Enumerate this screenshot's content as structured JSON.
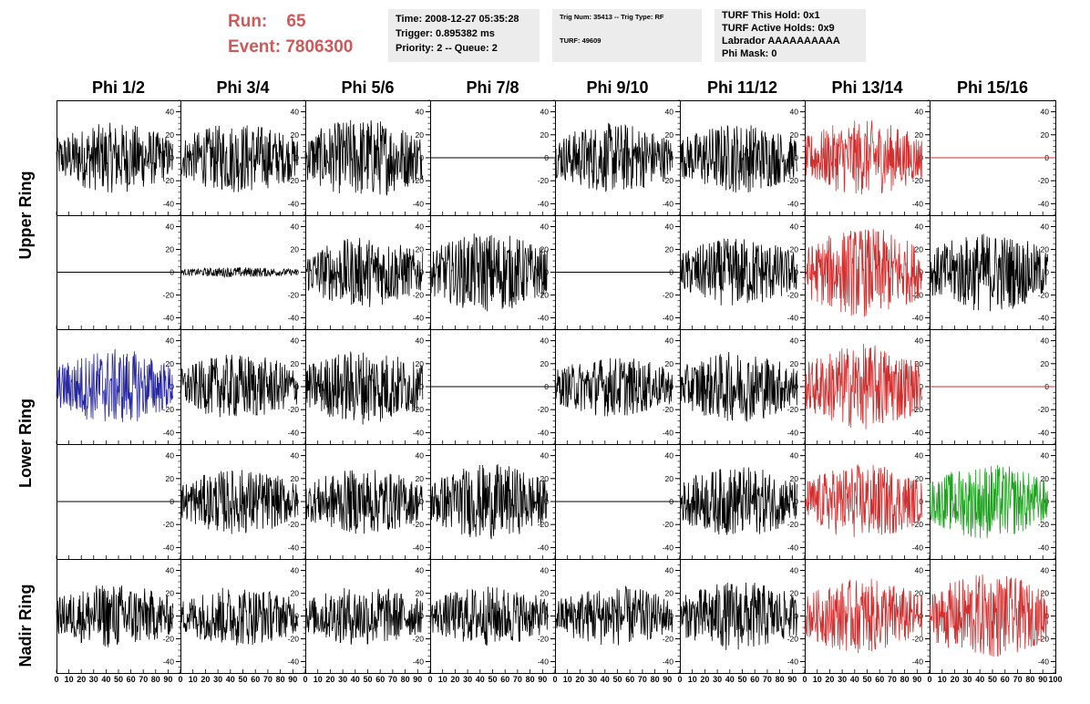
{
  "run_info": {
    "run_label": "Run:",
    "run_value": "65",
    "event_label": "Event:",
    "event_value": "7806300"
  },
  "info_box_1": {
    "time": "Time: 2008-12-27 05:35:28",
    "trigger": "Trigger: 0.895382 ms",
    "priority": "Priority: 2 -- Queue: 2"
  },
  "info_box_2": {
    "trig": "Trig Num: 35413 -- Trig Type: RF",
    "turf": "TURF: 49609"
  },
  "info_box_3": {
    "this_hold": "TURF This Hold: 0x1",
    "active_holds": "TURF Active Holds: 0x9",
    "labrador": "Labrador AAAAAAAAAA",
    "phi_mask": "Phi Mask: 0"
  },
  "columns": [
    "Phi 1/2",
    "Phi 3/4",
    "Phi 5/6",
    "Phi 7/8",
    "Phi 9/10",
    "Phi 11/12",
    "Phi 13/14",
    "Phi 15/16"
  ],
  "row_labels": {
    "upper": "Upper Ring",
    "lower": "Lower Ring",
    "nadir": "Nadir Ring"
  },
  "axes": {
    "y_range": [
      -50,
      50
    ],
    "y_ticks": [
      "40",
      "20",
      "0",
      "-20",
      "-40"
    ],
    "x_range": [
      0,
      100
    ],
    "x_ticks": [
      "0",
      "10",
      "20",
      "30",
      "40",
      "50",
      "60",
      "70",
      "80",
      "90",
      "100"
    ]
  },
  "colors": {
    "normal": "#000000",
    "red": "#d03030",
    "blue": "#2828a0",
    "green": "#20a020",
    "run_text": "#d05858",
    "info_bg": "#ececec"
  },
  "chart_data": {
    "type": "line",
    "title": "",
    "xlabel": "",
    "ylabel": "",
    "xlim": [
      0,
      100
    ],
    "ylim": [
      -50,
      50
    ],
    "grid": false,
    "panels": [
      [
        {
          "style": "noise",
          "amplitude": 28,
          "color": "normal"
        },
        {
          "style": "noise",
          "amplitude": 28,
          "color": "normal"
        },
        {
          "style": "noise",
          "amplitude": 32,
          "color": "normal"
        },
        {
          "style": "flat",
          "amplitude": 0,
          "color": "normal"
        },
        {
          "style": "noise",
          "amplitude": 28,
          "color": "normal"
        },
        {
          "style": "noise",
          "amplitude": 28,
          "color": "normal"
        },
        {
          "style": "noise",
          "amplitude": 30,
          "color": "red"
        },
        {
          "style": "flat",
          "amplitude": 0,
          "color": "red"
        }
      ],
      [
        {
          "style": "flat",
          "amplitude": 0,
          "color": "normal"
        },
        {
          "style": "noise",
          "amplitude": 4,
          "color": "normal"
        },
        {
          "style": "noise",
          "amplitude": 28,
          "color": "normal"
        },
        {
          "style": "noise",
          "amplitude": 32,
          "color": "normal"
        },
        {
          "style": "flat",
          "amplitude": 0,
          "color": "normal"
        },
        {
          "style": "noise",
          "amplitude": 28,
          "color": "normal"
        },
        {
          "style": "noise",
          "amplitude": 36,
          "color": "red"
        },
        {
          "style": "noise",
          "amplitude": 32,
          "color": "normal"
        }
      ],
      [
        {
          "style": "noise",
          "amplitude": 30,
          "color": "blue"
        },
        {
          "style": "noise",
          "amplitude": 26,
          "color": "normal"
        },
        {
          "style": "noise",
          "amplitude": 30,
          "color": "normal"
        },
        {
          "style": "flat",
          "amplitude": 0,
          "color": "normal"
        },
        {
          "style": "noise",
          "amplitude": 24,
          "color": "normal"
        },
        {
          "style": "noise",
          "amplitude": 28,
          "color": "normal"
        },
        {
          "style": "noise",
          "amplitude": 34,
          "color": "red"
        },
        {
          "style": "flat",
          "amplitude": 0,
          "color": "red"
        }
      ],
      [
        {
          "style": "flat",
          "amplitude": 0,
          "color": "normal"
        },
        {
          "style": "noise",
          "amplitude": 26,
          "color": "normal"
        },
        {
          "style": "noise",
          "amplitude": 26,
          "color": "normal"
        },
        {
          "style": "noise",
          "amplitude": 30,
          "color": "normal"
        },
        {
          "style": "flat",
          "amplitude": 0,
          "color": "normal"
        },
        {
          "style": "noise",
          "amplitude": 28,
          "color": "normal"
        },
        {
          "style": "noise",
          "amplitude": 30,
          "color": "red"
        },
        {
          "style": "noise",
          "amplitude": 30,
          "color": "green"
        }
      ],
      [
        {
          "style": "noise",
          "amplitude": 26,
          "color": "normal"
        },
        {
          "style": "noise",
          "amplitude": 24,
          "color": "normal"
        },
        {
          "style": "noise",
          "amplitude": 24,
          "color": "normal"
        },
        {
          "style": "noise",
          "amplitude": 24,
          "color": "normal"
        },
        {
          "style": "noise",
          "amplitude": 24,
          "color": "normal"
        },
        {
          "style": "noise",
          "amplitude": 28,
          "color": "normal"
        },
        {
          "style": "noise",
          "amplitude": 30,
          "color": "red"
        },
        {
          "style": "noise",
          "amplitude": 34,
          "color": "red"
        }
      ]
    ]
  }
}
